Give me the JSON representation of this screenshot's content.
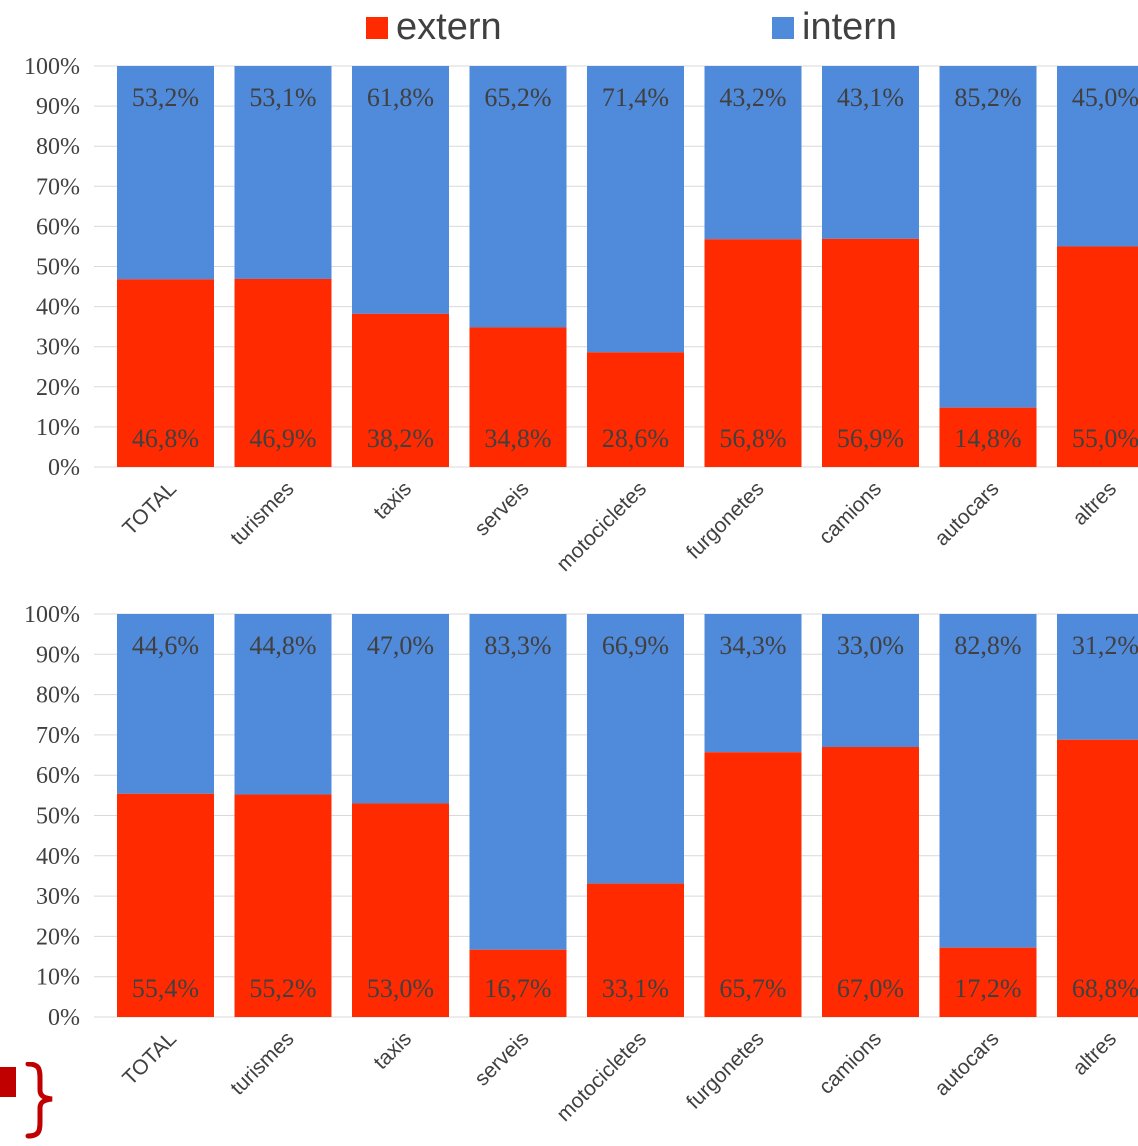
{
  "legend": {
    "extern_label": "extern",
    "intern_label": "intern"
  },
  "colors": {
    "extern": "#ff2a00",
    "intern": "#508adb",
    "grid": "#d9d9d9",
    "axis_text": "#404040",
    "brace": "#c00000"
  },
  "chart_data": [
    {
      "type": "bar",
      "stacked": true,
      "percent": true,
      "categories": [
        "TOTAL",
        "turismes",
        "taxis",
        "serveis",
        "motocicletes",
        "furgonetes",
        "camions",
        "autocars",
        "altres"
      ],
      "series": [
        {
          "name": "extern",
          "values": [
            46.8,
            46.9,
            38.2,
            34.8,
            28.6,
            56.8,
            56.9,
            14.8,
            55.0
          ],
          "labels": [
            "46,8%",
            "46,9%",
            "38,2%",
            "34,8%",
            "28,6%",
            "56,8%",
            "56,9%",
            "14,8%",
            "55,0%"
          ]
        },
        {
          "name": "intern",
          "values": [
            53.2,
            53.1,
            61.8,
            65.2,
            71.4,
            43.2,
            43.1,
            85.2,
            45.0
          ],
          "labels": [
            "53,2%",
            "53,1%",
            "61,8%",
            "65,2%",
            "71,4%",
            "43,2%",
            "43,1%",
            "85,2%",
            "45,0%"
          ]
        }
      ],
      "yticks": [
        "0%",
        "10%",
        "20%",
        "30%",
        "40%",
        "50%",
        "60%",
        "70%",
        "80%",
        "90%",
        "100%"
      ],
      "ylim": [
        0,
        100
      ],
      "grid": true
    },
    {
      "type": "bar",
      "stacked": true,
      "percent": true,
      "categories": [
        "TOTAL",
        "turismes",
        "taxis",
        "serveis",
        "motocicletes",
        "furgonetes",
        "camions",
        "autocars",
        "altres"
      ],
      "series": [
        {
          "name": "extern",
          "values": [
            55.4,
            55.2,
            53.0,
            16.7,
            33.1,
            65.7,
            67.0,
            17.2,
            68.8
          ],
          "labels": [
            "55,4%",
            "55,2%",
            "53,0%",
            "16,7%",
            "33,1%",
            "65,7%",
            "67,0%",
            "17,2%",
            "68,8%"
          ]
        },
        {
          "name": "intern",
          "values": [
            44.6,
            44.8,
            47.0,
            83.3,
            66.9,
            34.3,
            33.0,
            82.8,
            31.2
          ],
          "labels": [
            "44,6%",
            "44,8%",
            "47,0%",
            "83,3%",
            "66,9%",
            "34,3%",
            "33,0%",
            "82,8%",
            "31,2%"
          ]
        }
      ],
      "yticks": [
        "0%",
        "10%",
        "20%",
        "30%",
        "40%",
        "50%",
        "60%",
        "70%",
        "80%",
        "90%",
        "100%"
      ],
      "ylim": [
        0,
        100
      ],
      "grid": true
    }
  ]
}
